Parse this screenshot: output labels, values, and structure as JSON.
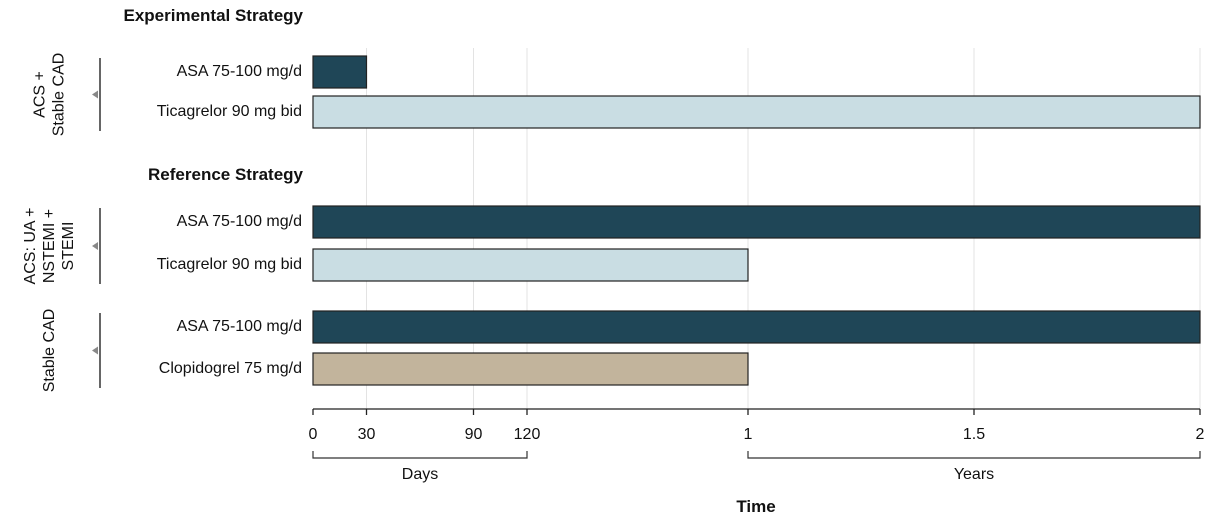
{
  "chart_data": {
    "type": "bar",
    "orientation": "horizontal",
    "xlabel": "Time",
    "x_units": [
      "Days",
      "Years"
    ],
    "x_ticks": [
      "0",
      "30",
      "90",
      "120",
      "1",
      "1.5",
      "2"
    ],
    "sections": [
      {
        "heading": "Experimental Strategy",
        "groups": [
          {
            "label": "ACS + Stable CAD",
            "bars": [
              {
                "label": "ASA 75-100 mg/d",
                "duration": "30 days",
                "color": "#1f4657"
              },
              {
                "label": "Ticagrelor 90 mg bid",
                "duration": "2 years",
                "color": "#c9dde3"
              }
            ]
          }
        ]
      },
      {
        "heading": "Reference Strategy",
        "groups": [
          {
            "label": "ACS: UA + NSTEMI + STEMI",
            "bars": [
              {
                "label": "ASA 75-100 mg/d",
                "duration": "2 years",
                "color": "#1f4657"
              },
              {
                "label": "Ticagrelor 90 mg bid",
                "duration": "1 year",
                "color": "#c9dde3"
              }
            ]
          },
          {
            "label": "Stable CAD",
            "bars": [
              {
                "label": "ASA 75-100 mg/d",
                "duration": "2 years",
                "color": "#1f4657"
              },
              {
                "label": "Clopidogrel 75 mg/d",
                "duration": "1 year",
                "color": "#c2b49c"
              }
            ]
          }
        ]
      }
    ]
  }
}
